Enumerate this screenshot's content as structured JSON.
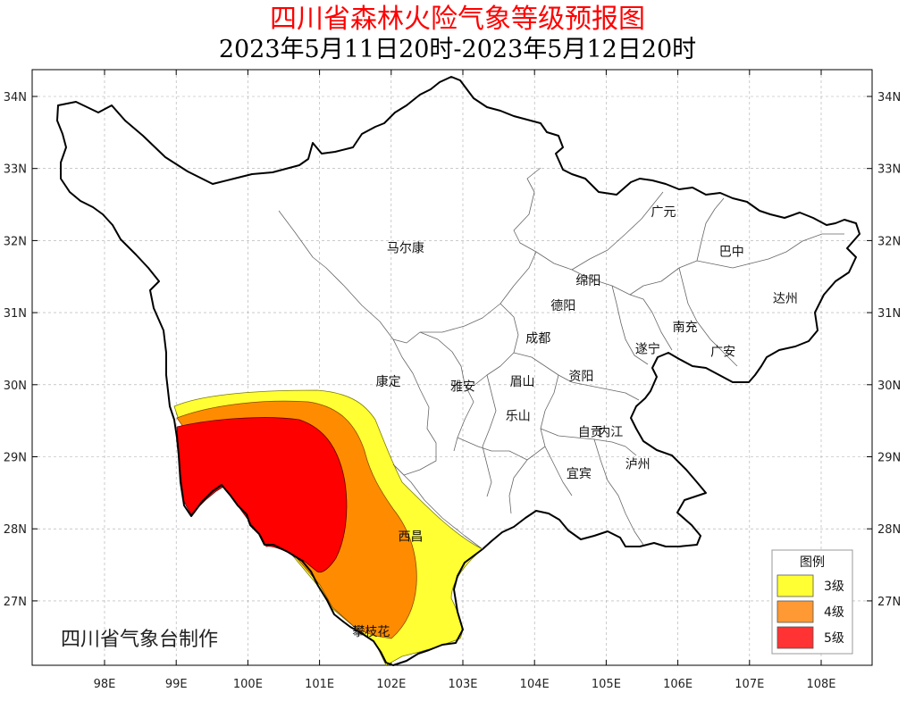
{
  "title": "四川省森林火险气象等级预报图",
  "subtitle": "2023年5月11日20时-2023年5月12日20时",
  "producer": "四川省气象台制作",
  "axes": {
    "lon_labels": [
      "98E",
      "99E",
      "100E",
      "101E",
      "102E",
      "103E",
      "104E",
      "105E",
      "106E",
      "107E",
      "108E"
    ],
    "lat_labels": [
      "34N",
      "33N",
      "32N",
      "31N",
      "30N",
      "29N",
      "28N",
      "27N"
    ]
  },
  "cities": [
    {
      "name": "马尔康",
      "lon": 102.2,
      "lat": 31.9
    },
    {
      "name": "广元",
      "lon": 105.8,
      "lat": 32.4
    },
    {
      "name": "巴中",
      "lon": 106.75,
      "lat": 31.85
    },
    {
      "name": "绵阳",
      "lon": 104.75,
      "lat": 31.45
    },
    {
      "name": "达州",
      "lon": 107.5,
      "lat": 31.2
    },
    {
      "name": "德阳",
      "lon": 104.4,
      "lat": 31.1
    },
    {
      "name": "南充",
      "lon": 106.1,
      "lat": 30.8
    },
    {
      "name": "成都",
      "lon": 104.05,
      "lat": 30.65
    },
    {
      "name": "遂宁",
      "lon": 105.58,
      "lat": 30.5
    },
    {
      "name": "广安",
      "lon": 106.63,
      "lat": 30.46
    },
    {
      "name": "康定",
      "lon": 101.96,
      "lat": 30.05
    },
    {
      "name": "雅安",
      "lon": 103.0,
      "lat": 29.98
    },
    {
      "name": "眉山",
      "lon": 103.83,
      "lat": 30.05
    },
    {
      "name": "资阳",
      "lon": 104.65,
      "lat": 30.12
    },
    {
      "name": "乐山",
      "lon": 103.77,
      "lat": 29.57
    },
    {
      "name": "自贡",
      "lon": 104.78,
      "lat": 29.35
    },
    {
      "name": "内江",
      "lon": 105.06,
      "lat": 29.35
    },
    {
      "name": "泸州",
      "lon": 105.44,
      "lat": 28.9
    },
    {
      "name": "宜宾",
      "lon": 104.62,
      "lat": 28.77
    },
    {
      "name": "西昌",
      "lon": 102.27,
      "lat": 27.9
    },
    {
      "name": "攀枝花",
      "lon": 101.72,
      "lat": 26.58
    }
  ],
  "legend": {
    "title": "图例",
    "items": [
      {
        "label": "3级",
        "color": "#ffff33"
      },
      {
        "label": "4级",
        "color": "#ff9933"
      },
      {
        "label": "5级",
        "color": "#ff3333"
      }
    ]
  },
  "colors": {
    "level3": "#ffff33",
    "level4": "#ff8c00",
    "level5": "#ff0000",
    "title_red": "#ff0000"
  }
}
